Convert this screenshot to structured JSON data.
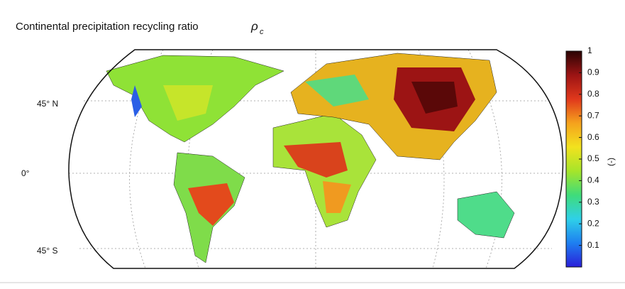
{
  "title": {
    "text": "Continental precipitation recycling ratio",
    "symbol": "ρ",
    "subscript": "c"
  },
  "map": {
    "lat_labels": [
      "45° N",
      "0°",
      "45° S"
    ]
  },
  "colorbar": {
    "lim": [
      0,
      1
    ],
    "ticks": [
      0.1,
      0.2,
      0.3,
      0.4,
      0.5,
      0.6,
      0.7,
      0.8,
      0.9,
      1
    ],
    "label": "(-)",
    "colors": [
      "#2a1fd9",
      "#1e7ff0",
      "#2fd0e8",
      "#3fdc7a",
      "#a6e52a",
      "#f2e21e",
      "#f5a21d",
      "#e0381c",
      "#9c1414",
      "#2a0404"
    ]
  }
}
